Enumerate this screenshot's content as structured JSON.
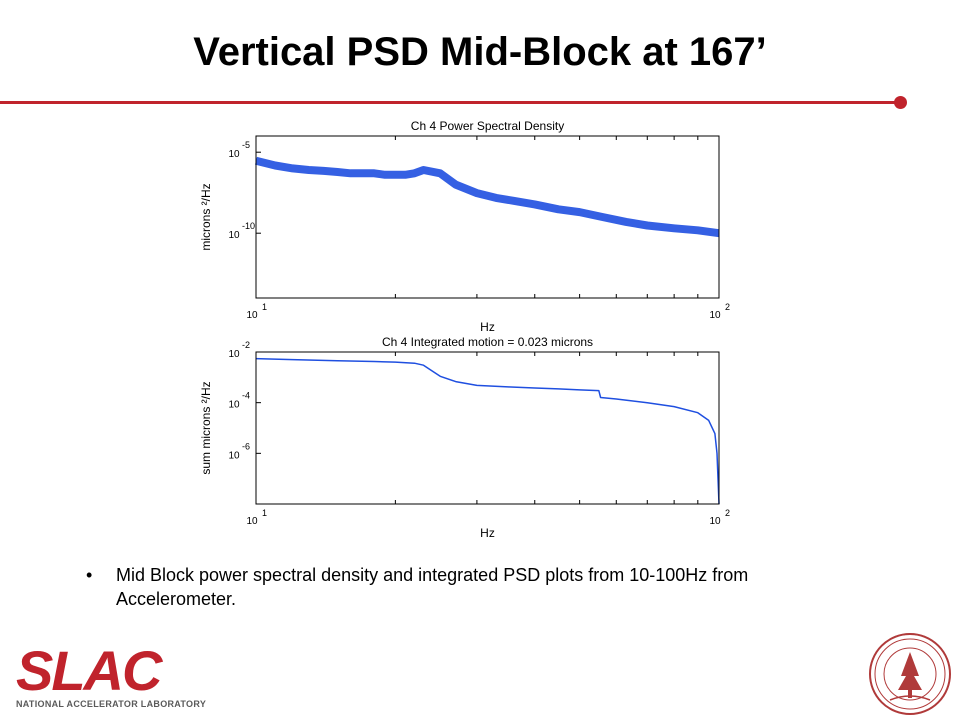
{
  "slide": {
    "title": "Vertical PSD Mid-Block at 167’",
    "bullet": "Mid Block power spectral density and integrated PSD plots from 10-100Hz from Accelerometer.",
    "bullet_marker": "•",
    "accent_color": "#c0232c"
  },
  "logo": {
    "name": "SLAC",
    "subtitle": "NATIONAL ACCELERATOR LABORATORY"
  },
  "seal": {
    "icon": "stanford-seal-icon"
  },
  "chart_data": [
    {
      "type": "line",
      "title": "Ch 4  Power Spectral Density",
      "xlabel": "Hz",
      "ylabel": "microns ²/Hz",
      "xscale": "log",
      "yscale": "log",
      "xlim": [
        10,
        100
      ],
      "ylim": [
        1e-14,
        0.0001
      ],
      "xticks": [
        {
          "base": "10",
          "exp": "1"
        },
        {
          "base": "10",
          "exp": "2"
        }
      ],
      "yticks": [
        {
          "base": "10",
          "exp": "-5",
          "value": 1e-05
        },
        {
          "base": "10",
          "exp": "-10",
          "value": 1e-10
        }
      ],
      "series_color": "#1f4fe0",
      "x": [
        10,
        11,
        12,
        13,
        14,
        15,
        16,
        17,
        18,
        19,
        20,
        21,
        22,
        23,
        25,
        27,
        30,
        33,
        36,
        40,
        45,
        50,
        56,
        63,
        70,
        80,
        90,
        100
      ],
      "y": [
        3e-06,
        1.5e-06,
        1e-06,
        8e-07,
        7e-07,
        6e-07,
        5e-07,
        5e-07,
        5e-07,
        4e-07,
        4e-07,
        4e-07,
        5e-07,
        8e-07,
        5e-07,
        1e-07,
        3e-08,
        1.5e-08,
        1e-08,
        6e-09,
        3e-09,
        2e-09,
        1e-09,
        5e-10,
        3e-10,
        2e-10,
        1.5e-10,
        1e-10
      ]
    },
    {
      "type": "line",
      "title": "Ch 4  Integrated motion =   0.023 microns",
      "xlabel": "Hz",
      "ylabel": "sum microns ²/Hz",
      "xscale": "log",
      "yscale": "log",
      "xlim": [
        10,
        100
      ],
      "ylim": [
        1e-08,
        0.01
      ],
      "xticks": [
        {
          "base": "10",
          "exp": "1"
        },
        {
          "base": "10",
          "exp": "2"
        }
      ],
      "yticks": [
        {
          "base": "10",
          "exp": "-2",
          "value": 0.01
        },
        {
          "base": "10",
          "exp": "-4",
          "value": 0.0001
        },
        {
          "base": "10",
          "exp": "-6",
          "value": 1e-06
        }
      ],
      "series_color": "#1f4fe0",
      "x": [
        10,
        12,
        15,
        18,
        20,
        22,
        23,
        24,
        25,
        27,
        30,
        35,
        40,
        45,
        50,
        55,
        55.5,
        60,
        70,
        80,
        90,
        95,
        98,
        99,
        100
      ],
      "y": [
        0.0055,
        0.005,
        0.0045,
        0.0042,
        0.004,
        0.0036,
        0.003,
        0.0018,
        0.0011,
        0.00068,
        0.00048,
        0.00042,
        0.00038,
        0.00035,
        0.00032,
        0.0003,
        0.00016,
        0.00014,
        0.0001,
        7e-05,
        4e-05,
        2e-05,
        6e-06,
        1e-06,
        1e-08
      ]
    }
  ]
}
